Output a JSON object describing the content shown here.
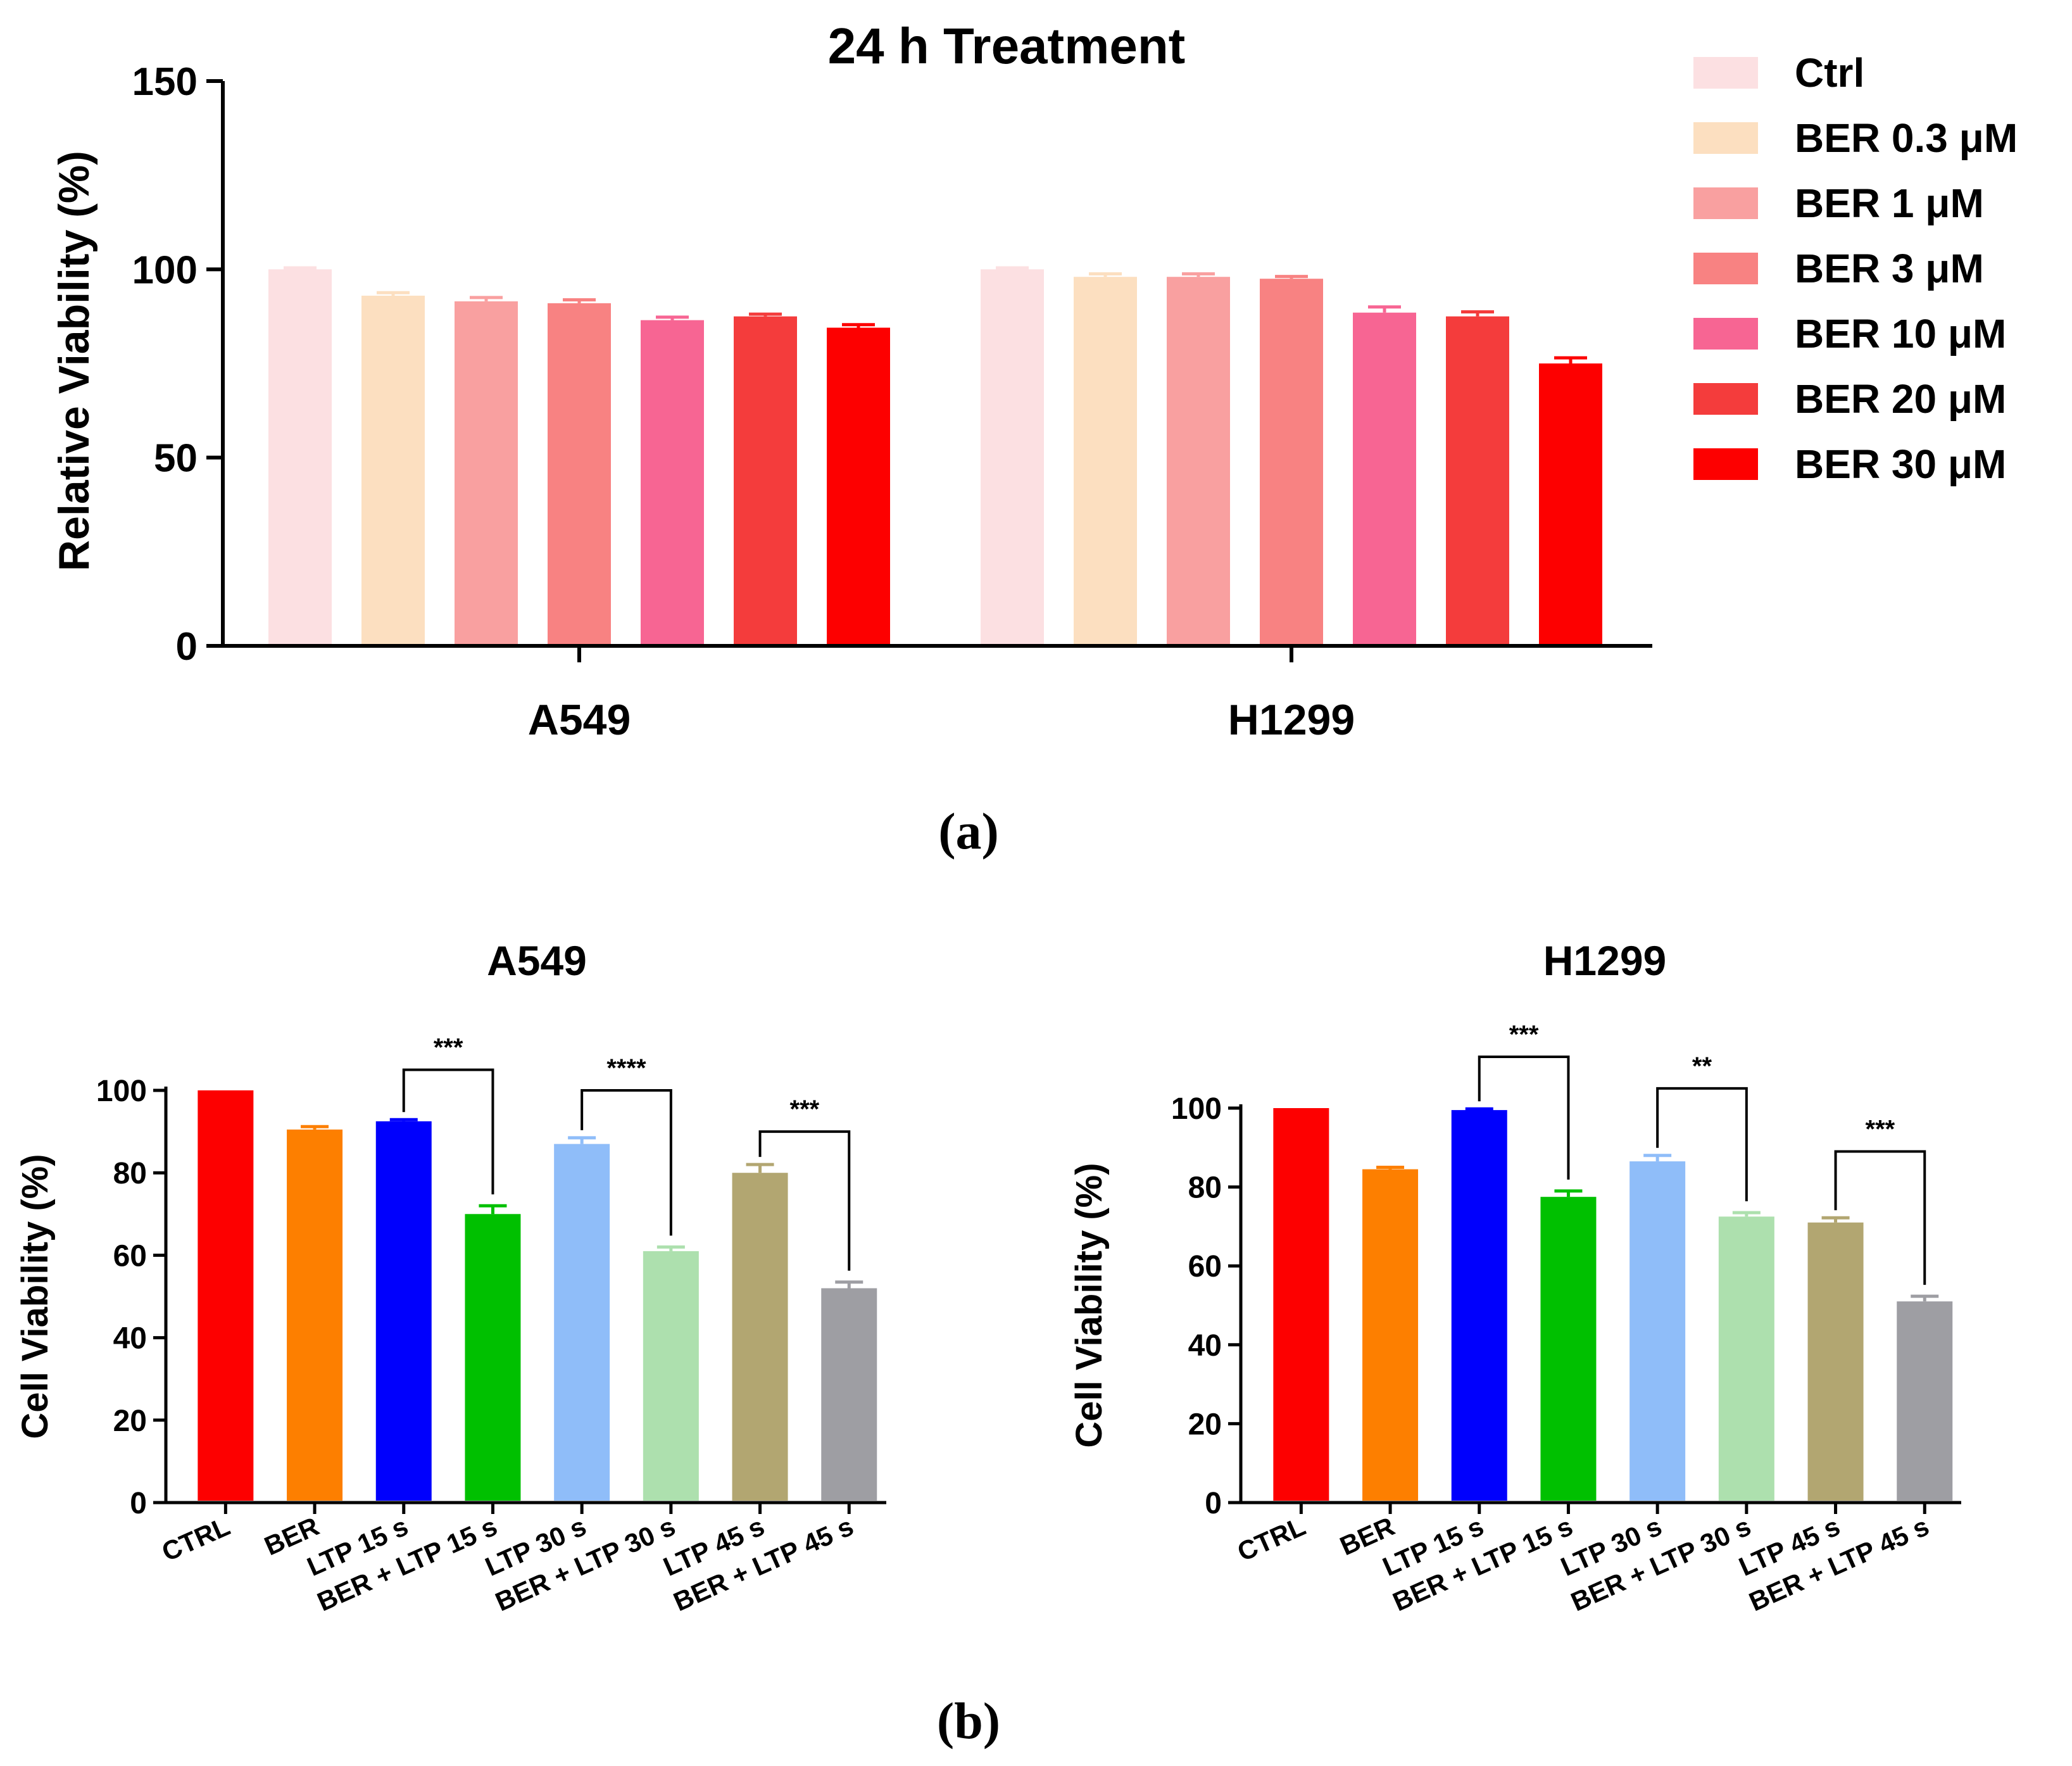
{
  "panel_a": {
    "label": "(a)"
  },
  "panel_b": {
    "label": "(b)"
  },
  "chart_data": [
    {
      "type": "bar",
      "title": "24 h   Treatment",
      "xlabel": "",
      "ylabel": "Relative Viability (%)",
      "ylim": [
        0,
        150
      ],
      "yticks": [
        "0",
        "50",
        "100",
        "150"
      ],
      "categories": [
        "A549",
        "H1299"
      ],
      "legend_position": "right",
      "series": [
        {
          "name": "Ctrl",
          "color": "#FCE0E2",
          "values": [
            100,
            100
          ],
          "errors": [
            0.4,
            0.4
          ]
        },
        {
          "name": "BER 0.3 μM",
          "color": "#FCDFC0",
          "values": [
            93,
            98
          ],
          "errors": [
            0.8,
            0.8
          ]
        },
        {
          "name": "BER 1 μM",
          "color": "#F9A0A0",
          "values": [
            91.5,
            98
          ],
          "errors": [
            1.0,
            0.8
          ]
        },
        {
          "name": "BER 3 μM",
          "color": "#F88282",
          "values": [
            91,
            97.5
          ],
          "errors": [
            0.9,
            0.6
          ]
        },
        {
          "name": "BER 10 μM",
          "color": "#F76593",
          "values": [
            86.5,
            88.5
          ],
          "errors": [
            0.8,
            1.5
          ]
        },
        {
          "name": "BER 20 μM",
          "color": "#F43C3C",
          "values": [
            87.5,
            87.5
          ],
          "errors": [
            0.6,
            1.2
          ]
        },
        {
          "name": "BER 30 μM",
          "color": "#FD0000",
          "values": [
            84.5,
            75
          ],
          "errors": [
            0.8,
            1.5
          ]
        }
      ]
    },
    {
      "type": "bar",
      "title": "A549",
      "xlabel": "",
      "ylabel": "Cell Viability (%)",
      "ylim": [
        0,
        100
      ],
      "yticks": [
        "0",
        "20",
        "40",
        "60",
        "80",
        "100"
      ],
      "categories": [
        "CTRL",
        "BER",
        "LTP 15 s",
        "BER + LTP 15 s",
        "LTP 30 s",
        "BER + LTP 30 s",
        "LTP 45 s",
        "BER + LTP 45 s"
      ],
      "values": [
        100,
        90.5,
        92.5,
        70,
        87,
        61,
        80,
        52
      ],
      "errors": [
        0,
        0.7,
        0.4,
        2.0,
        1.5,
        1.0,
        2.0,
        1.5
      ],
      "colors": [
        "#FD0000",
        "#FD7F00",
        "#0000FD",
        "#00C000",
        "#8FBDF9",
        "#ADE0AE",
        "#B2A671",
        "#9E9EA3"
      ],
      "annotations": [
        {
          "from": "LTP 15 s",
          "to": "BER + LTP 15 s",
          "text": "***",
          "y": 105
        },
        {
          "from": "LTP 30 s",
          "to": "BER + LTP 30 s",
          "text": "****",
          "y": 100
        },
        {
          "from": "LTP 45 s",
          "to": "BER + LTP 45 s",
          "text": "***",
          "y": 90
        }
      ]
    },
    {
      "type": "bar",
      "title": "H1299",
      "xlabel": "",
      "ylabel": "Cell Viability (%)",
      "ylim": [
        0,
        100
      ],
      "yticks": [
        "0",
        "20",
        "40",
        "60",
        "80",
        "100"
      ],
      "categories": [
        "CTRL",
        "BER",
        "LTP 15 s",
        "BER + LTP 15 s",
        "LTP 30 s",
        "BER + LTP 30 s",
        "LTP 45 s",
        "BER + LTP 45 s"
      ],
      "values": [
        100,
        84.5,
        99.5,
        77.5,
        86.5,
        72.5,
        71,
        51
      ],
      "errors": [
        0,
        0.5,
        0.3,
        1.5,
        1.5,
        1.0,
        1.2,
        1.3
      ],
      "colors": [
        "#FD0000",
        "#FD7F00",
        "#0000FD",
        "#00C000",
        "#8FBDF9",
        "#ADE0AE",
        "#B2A671",
        "#9E9EA3"
      ],
      "annotations": [
        {
          "from": "LTP 15 s",
          "to": "BER + LTP 15 s",
          "text": "***",
          "y": 113
        },
        {
          "from": "LTP 30 s",
          "to": "BER + LTP 30 s",
          "text": "**",
          "y": 105
        },
        {
          "from": "LTP 45 s",
          "to": "BER + LTP 45 s",
          "text": "***",
          "y": 89
        }
      ]
    }
  ]
}
